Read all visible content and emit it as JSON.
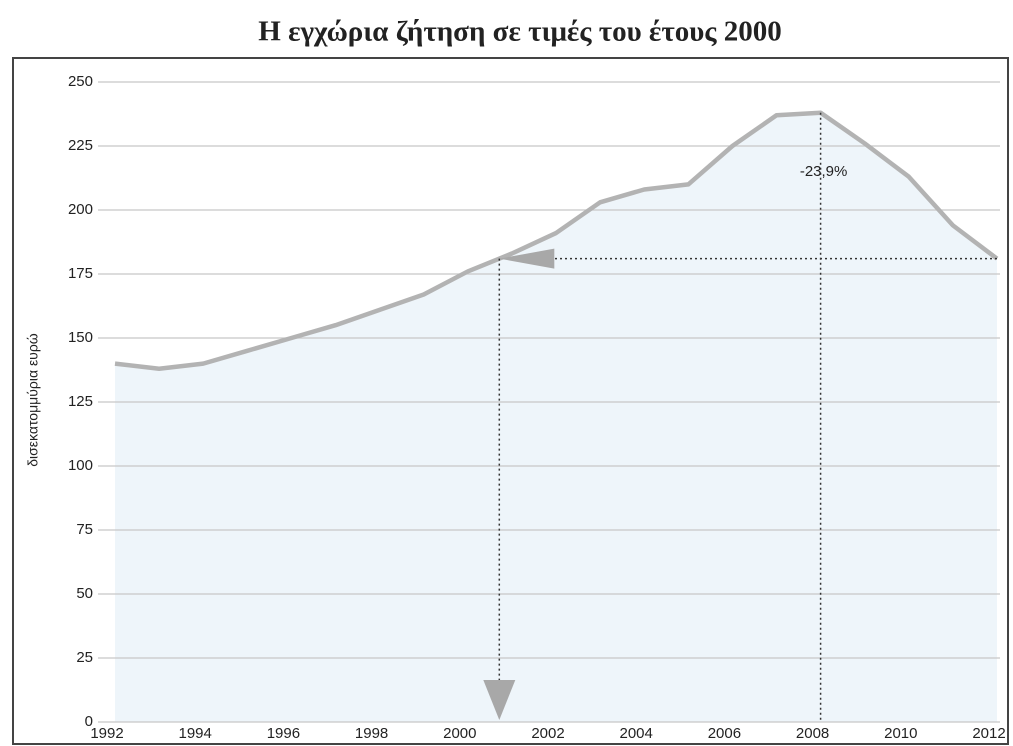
{
  "chart_data": {
    "type": "area",
    "title": "Η εγχώρια ζήτηση σε τιμές του έτους 2000",
    "y_label": "δισεκατομμύρια ευρώ",
    "annotation": "-23,9%",
    "x": [
      1992,
      1993,
      1994,
      1995,
      1996,
      1997,
      1998,
      1999,
      2000,
      2001,
      2002,
      2003,
      2004,
      2005,
      2006,
      2007,
      2008,
      2009,
      2010,
      2011,
      2012
    ],
    "values": [
      140,
      138,
      140,
      145,
      150,
      155,
      161,
      167,
      176,
      183,
      191,
      203,
      208,
      210,
      225,
      237,
      238,
      226,
      213,
      194,
      181
    ],
    "color": "#b3b3b3",
    "fill": "#eef5fa",
    "xlim": [
      1992,
      2012
    ],
    "xticks": [
      1992,
      1994,
      1996,
      1998,
      2000,
      2002,
      2004,
      2006,
      2008,
      2010,
      2012
    ],
    "ylim": [
      0,
      250
    ],
    "yticks": [
      0,
      25,
      50,
      75,
      100,
      125,
      150,
      175,
      200,
      225,
      250
    ],
    "grid": true
  }
}
